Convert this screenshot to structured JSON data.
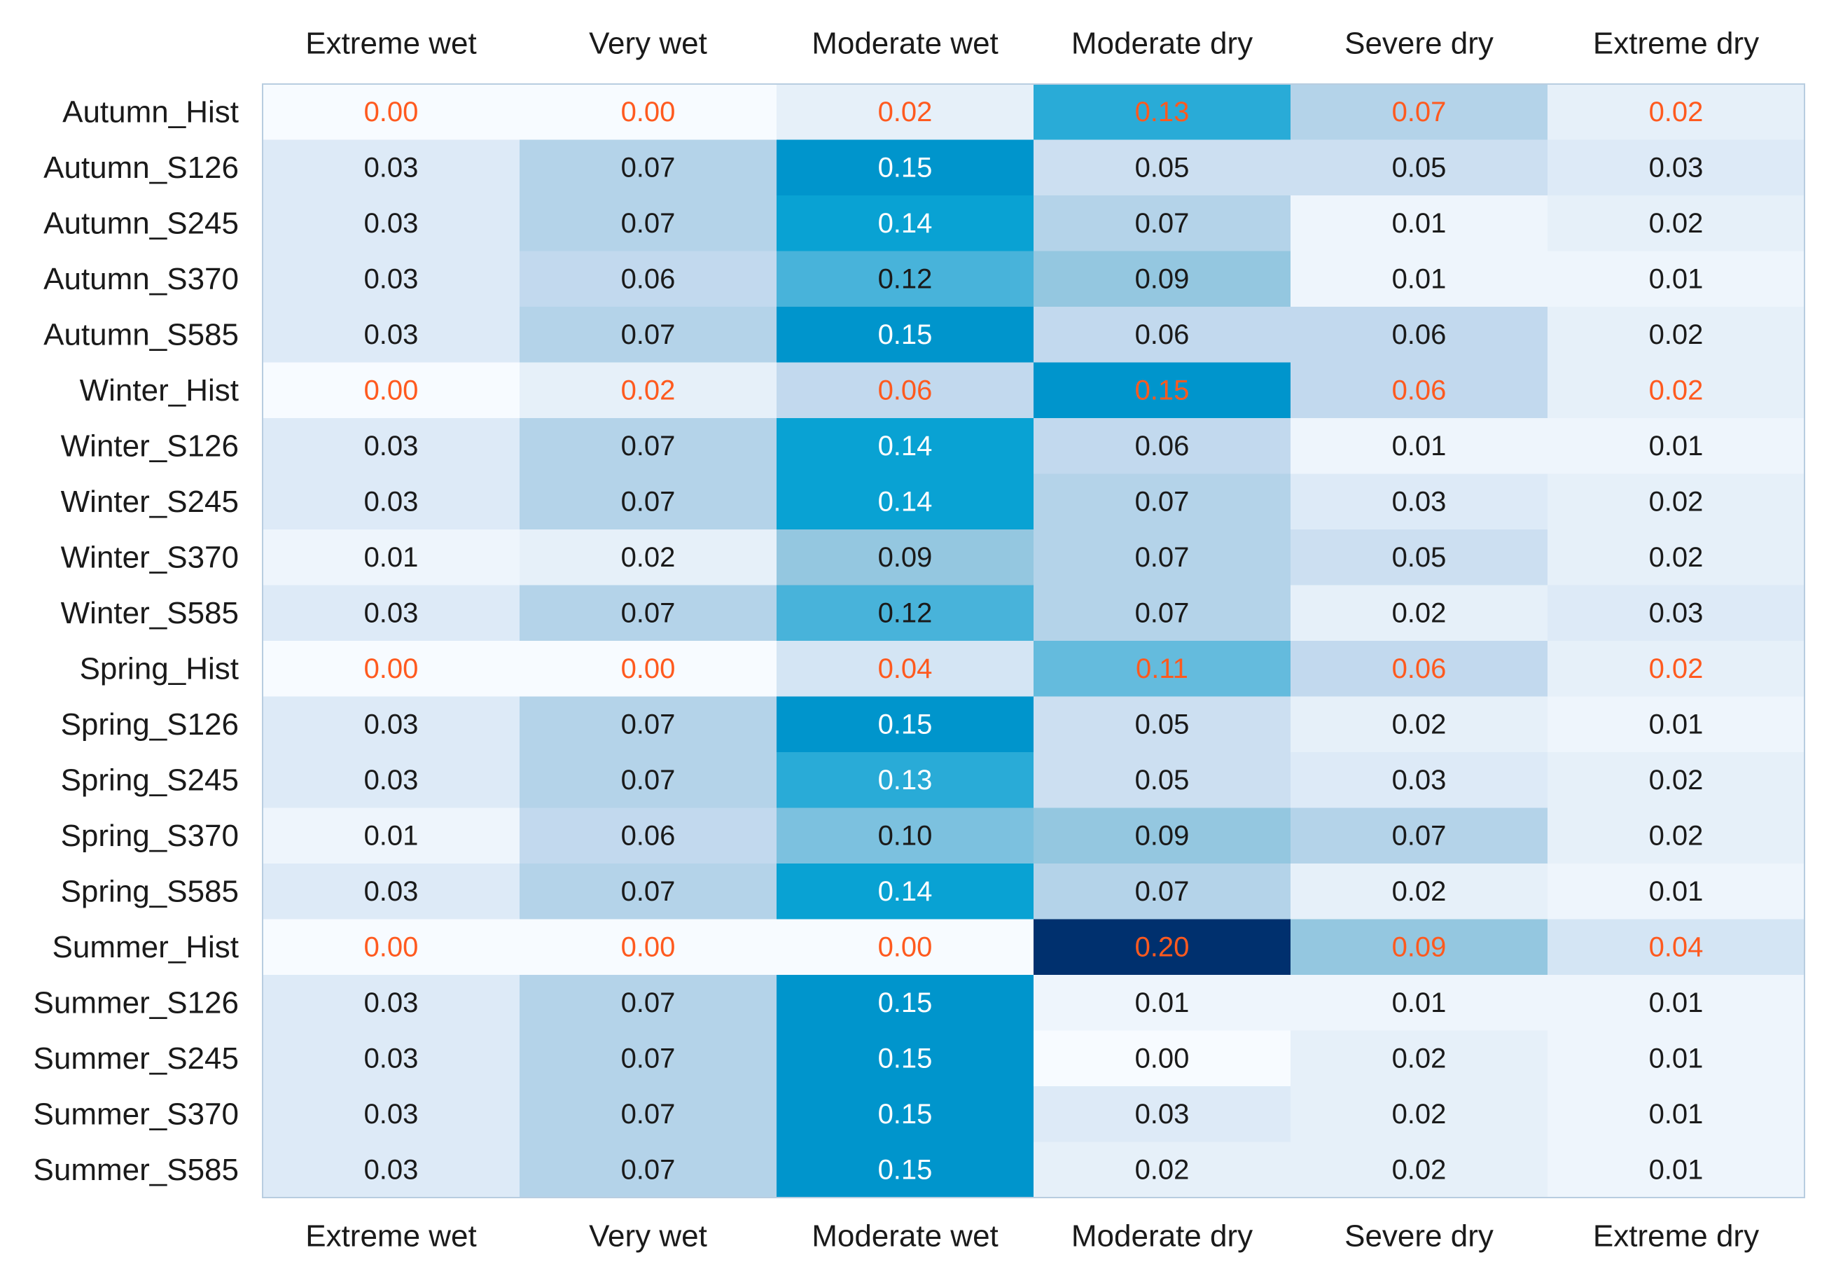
{
  "chart_data": {
    "type": "heatmap",
    "columns": [
      "Extreme wet",
      "Very wet",
      "Moderate wet",
      "Moderate dry",
      "Severe dry",
      "Extreme dry"
    ],
    "rows": [
      "Autumn_Hist",
      "Autumn_S126",
      "Autumn_S245",
      "Autumn_S370",
      "Autumn_S585",
      "Winter_Hist",
      "Winter_S126",
      "Winter_S245",
      "Winter_S370",
      "Winter_S585",
      "Spring_Hist",
      "Spring_S126",
      "Spring_S245",
      "Spring_S370",
      "Spring_S585",
      "Summer_Hist",
      "Summer_S126",
      "Summer_S245",
      "Summer_S370",
      "Summer_S585"
    ],
    "highlighted_rows": [
      "Autumn_Hist",
      "Winter_Hist",
      "Spring_Hist",
      "Summer_Hist"
    ],
    "values": [
      [
        0.0,
        0.0,
        0.02,
        0.13,
        0.07,
        0.02
      ],
      [
        0.03,
        0.07,
        0.15,
        0.05,
        0.05,
        0.03
      ],
      [
        0.03,
        0.07,
        0.14,
        0.07,
        0.01,
        0.02
      ],
      [
        0.03,
        0.06,
        0.12,
        0.09,
        0.01,
        0.01
      ],
      [
        0.03,
        0.07,
        0.15,
        0.06,
        0.06,
        0.02
      ],
      [
        0.0,
        0.02,
        0.06,
        0.15,
        0.06,
        0.02
      ],
      [
        0.03,
        0.07,
        0.14,
        0.06,
        0.01,
        0.01
      ],
      [
        0.03,
        0.07,
        0.14,
        0.07,
        0.03,
        0.02
      ],
      [
        0.01,
        0.02,
        0.09,
        0.07,
        0.05,
        0.02
      ],
      [
        0.03,
        0.07,
        0.12,
        0.07,
        0.02,
        0.03
      ],
      [
        0.0,
        0.0,
        0.04,
        0.11,
        0.06,
        0.02
      ],
      [
        0.03,
        0.07,
        0.15,
        0.05,
        0.02,
        0.01
      ],
      [
        0.03,
        0.07,
        0.13,
        0.05,
        0.03,
        0.02
      ],
      [
        0.01,
        0.06,
        0.1,
        0.09,
        0.07,
        0.02
      ],
      [
        0.03,
        0.07,
        0.14,
        0.07,
        0.02,
        0.01
      ],
      [
        0.0,
        0.0,
        0.0,
        0.2,
        0.09,
        0.04
      ],
      [
        0.03,
        0.07,
        0.15,
        0.01,
        0.01,
        0.01
      ],
      [
        0.03,
        0.07,
        0.15,
        0.0,
        0.02,
        0.01
      ],
      [
        0.03,
        0.07,
        0.15,
        0.03,
        0.02,
        0.01
      ],
      [
        0.03,
        0.07,
        0.15,
        0.02,
        0.02,
        0.01
      ]
    ],
    "value_format": "0.00",
    "vmin": 0.0,
    "vmax": 0.2,
    "colormap": "Blues",
    "colormap_stops": [
      "#f7fbff",
      "#deebf7",
      "#c6dbef",
      "#9ecae1",
      "#5ab8dc",
      "#00a0d2",
      "#0073b8",
      "#00306e"
    ],
    "highlight_color": "#ff5a1f",
    "dark_text_color": "#1a1a1a",
    "light_text_color": "#ffffff",
    "x_tick_positions": [
      "top",
      "bottom"
    ]
  }
}
